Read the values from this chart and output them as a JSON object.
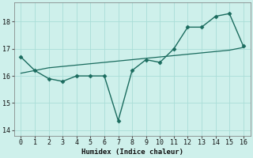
{
  "x": [
    0,
    1,
    2,
    3,
    4,
    5,
    6,
    7,
    8,
    9,
    10,
    11,
    12,
    13,
    14,
    15,
    16
  ],
  "y_main": [
    16.7,
    16.2,
    15.9,
    15.8,
    16.0,
    16.0,
    16.0,
    14.35,
    16.2,
    16.6,
    16.5,
    17.0,
    17.8,
    17.8,
    18.2,
    18.3,
    17.1
  ],
  "y_trend": [
    16.1,
    16.2,
    16.3,
    16.35,
    16.4,
    16.45,
    16.5,
    16.55,
    16.6,
    16.65,
    16.7,
    16.75,
    16.8,
    16.85,
    16.9,
    16.95,
    17.05
  ],
  "xlabel": "Humidex (Indice chaleur)",
  "ylim": [
    13.8,
    18.7
  ],
  "xlim": [
    -0.5,
    16.5
  ],
  "yticks": [
    14,
    15,
    16,
    17,
    18
  ],
  "xticks": [
    0,
    1,
    2,
    3,
    4,
    5,
    6,
    7,
    8,
    9,
    10,
    11,
    12,
    13,
    14,
    15,
    16
  ],
  "line_color": "#1a6b5e",
  "bg_color": "#cef0eb",
  "grid_color": "#aaddd7",
  "fig_bg": "#cef0eb"
}
